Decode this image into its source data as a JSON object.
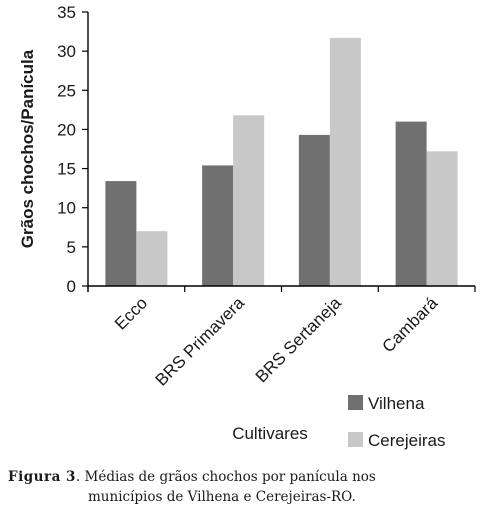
{
  "chart_data": {
    "type": "bar",
    "categories": [
      "Ecco",
      "BRS Primavera",
      "BRS Sertaneja",
      "Cambará"
    ],
    "series": [
      {
        "name": "Vilhena",
        "values": [
          13.4,
          15.4,
          19.3,
          21.0
        ],
        "color": "#707070"
      },
      {
        "name": "Cerejeiras",
        "values": [
          7.0,
          21.8,
          31.7,
          17.2
        ],
        "color": "#c8c8c8"
      }
    ],
    "title": "",
    "xlabel": "Cultivares",
    "ylabel": "Grãos chochos/Panícula",
    "ylim": [
      0,
      35
    ],
    "yticks": [
      0,
      5,
      10,
      15,
      20,
      25,
      30,
      35
    ],
    "grid": false,
    "legend_position": "bottom-right"
  },
  "caption": {
    "label": "Figura 3",
    "line1": ". Médias de grãos chochos por panícula nos",
    "line2": "municípios de Vilhena e Cerejeiras-RO."
  }
}
